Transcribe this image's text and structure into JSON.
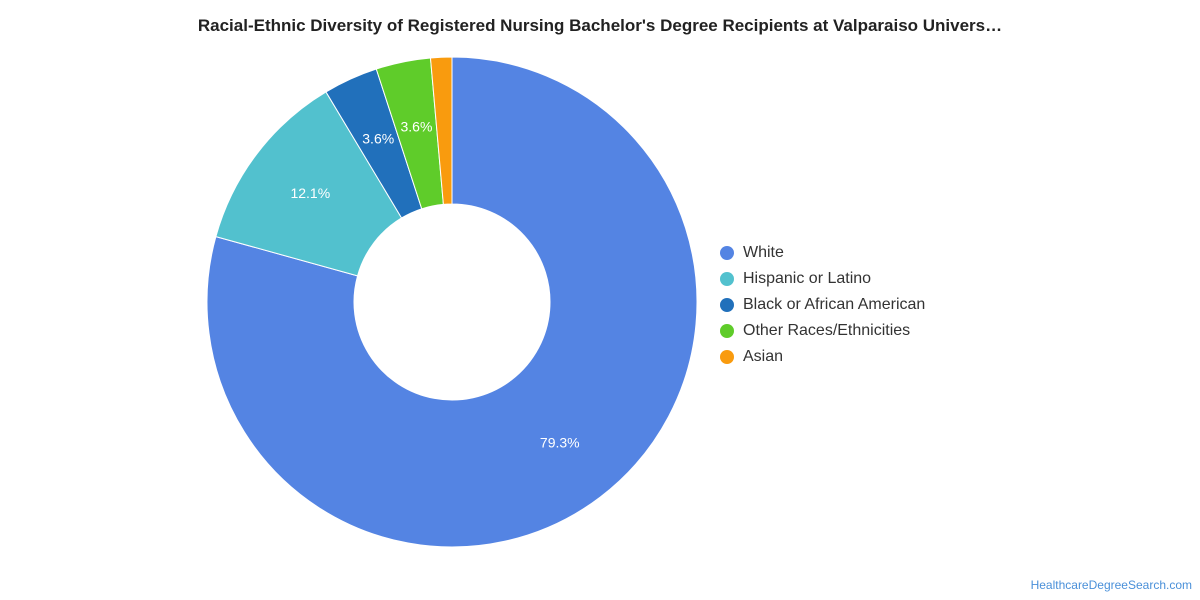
{
  "chart_data": {
    "type": "pie",
    "title": "Racial-Ethnic Diversity of Registered Nursing Bachelor's Degree Recipients at Valparaiso Univers…",
    "legend_position": "right",
    "slices": [
      {
        "name": "White",
        "value": 79.3,
        "label": "79.3%",
        "color": "#5484e3"
      },
      {
        "name": "Hispanic or Latino",
        "value": 12.1,
        "label": "12.1%",
        "color": "#52c1ce"
      },
      {
        "name": "Black or African American",
        "value": 3.6,
        "label": "3.6%",
        "color": "#2170bb"
      },
      {
        "name": "Other Races/Ethnicities",
        "value": 3.6,
        "label": "3.6%",
        "color": "#5fcc2a"
      },
      {
        "name": "Asian",
        "value": 1.4,
        "label": "",
        "color": "#f99b0e"
      }
    ]
  },
  "source": "HealthcareDegreeSearch.com"
}
